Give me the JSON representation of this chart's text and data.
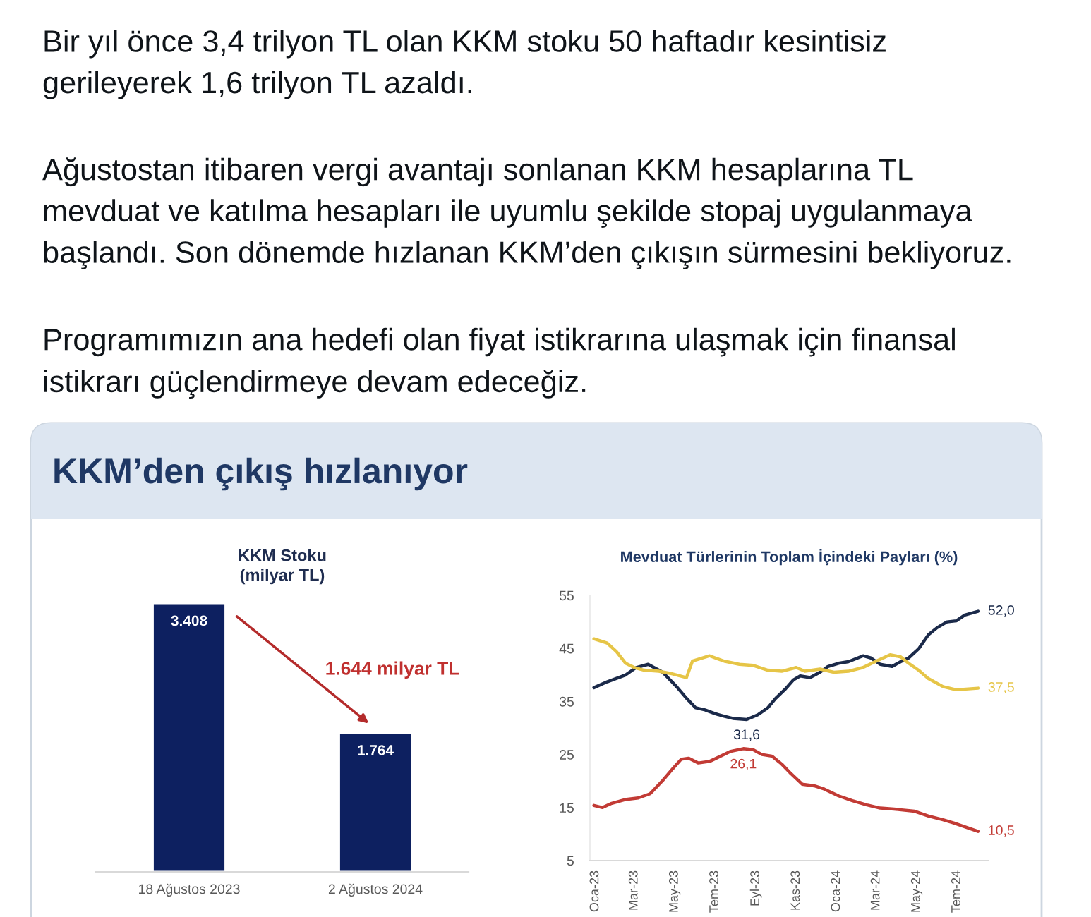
{
  "chart_data": [
    {
      "type": "other",
      "title": "KKM’den çıkış hızlanıyor",
      "annotations": [
        "Bir yıl önce 3,4 trilyon TL olan KKM stoku 50 haftadır kesintisiz\ngerileyerek 1,6 trilyon TL azaldı.",
        "Ağustostan itibaren vergi avantajı sonlanan KKM hesaplarına TL\nmevduat ve katılma hesapları ile uyumlu şekilde stopaj uygulanmaya\nbaşlandı. Son dönemde hızlanan KKM’den çıkışın sürmesini bekliyoruz.",
        "Programımızın ana hedefi olan fiyat istikrarına ulaşmak için finansal\nistikrarı güçlendirmeye devam edeceğiz."
      ]
    },
    {
      "type": "bar",
      "title": "KKM Stoku\n(milyar TL)",
      "categories": [
        "18 Ağustos 2023",
        "2 Ağustos 2024"
      ],
      "values": [
        3408,
        1764
      ],
      "value_labels": [
        "3.408",
        "1.764"
      ],
      "color": "#0d2060",
      "annotations": [
        "1.644 milyar TL"
      ]
    },
    {
      "type": "line",
      "title": "Mevduat Türlerinin Toplam İçindeki Payları (%)",
      "series": [
        {
          "color": "#1b2a4a",
          "x": [
            "2022-12-30",
            "2023-01-19",
            "2023-02-16",
            "2023-03-04",
            "2023-03-22",
            "2023-04-13",
            "2023-05-04",
            "2023-05-19",
            "2023-06-02",
            "2023-06-16",
            "2023-07-01",
            "2023-07-15",
            "2023-07-28",
            "2023-08-18",
            "2023-09-04",
            "2023-09-19",
            "2023-10-01",
            "2023-10-16",
            "2023-10-28",
            "2023-11-07",
            "2023-11-22",
            "2023-12-07",
            "2023-12-19",
            "2024-01-04",
            "2024-01-19",
            "2024-02-10",
            "2024-02-22",
            "2024-03-07",
            "2024-03-25",
            "2024-04-07",
            "2024-04-19",
            "2024-05-04",
            "2024-05-19",
            "2024-06-01",
            "2024-06-16",
            "2024-06-30",
            "2024-07-13",
            "2024-08-02"
          ],
          "values": [
            37.6,
            38.7,
            40.0,
            41.4,
            42.0,
            40.5,
            37.8,
            35.6,
            33.8,
            33.4,
            32.7,
            32.2,
            31.8,
            31.6,
            32.5,
            33.8,
            35.6,
            37.4,
            39.1,
            39.8,
            39.5,
            40.5,
            41.6,
            42.2,
            42.5,
            43.6,
            43.2,
            42.0,
            41.6,
            42.5,
            43.2,
            44.9,
            47.6,
            48.9,
            50.0,
            50.2,
            51.3,
            52.0
          ],
          "value_labels": [
            null,
            null,
            null,
            null,
            null,
            null,
            null,
            null,
            null,
            null,
            null,
            null,
            null,
            "31,6",
            null,
            null,
            null,
            null,
            null,
            null,
            null,
            null,
            null,
            null,
            null,
            null,
            null,
            null,
            null,
            null,
            null,
            null,
            null,
            null,
            null,
            null,
            null,
            "52,0"
          ]
        },
        {
          "color": "#e6c547",
          "x": [
            "2022-12-30",
            "2023-01-19",
            "2023-02-02",
            "2023-02-16",
            "2023-03-01",
            "2023-03-16",
            "2023-04-07",
            "2023-04-28",
            "2023-05-19",
            "2023-05-28",
            "2023-06-23",
            "2023-07-15",
            "2023-08-07",
            "2023-08-28",
            "2023-09-19",
            "2023-10-10",
            "2023-11-01",
            "2023-11-14",
            "2023-12-07",
            "2023-12-28",
            "2024-01-19",
            "2024-02-10",
            "2024-03-01",
            "2024-03-22",
            "2024-04-07",
            "2024-04-19",
            "2024-05-04",
            "2024-05-19",
            "2024-06-10",
            "2024-06-30",
            "2024-08-02"
          ],
          "values": [
            46.8,
            46.0,
            44.4,
            42.2,
            41.4,
            40.9,
            40.7,
            40.2,
            39.5,
            42.6,
            43.6,
            42.6,
            42.0,
            41.8,
            40.9,
            40.7,
            41.4,
            40.7,
            41.1,
            40.5,
            40.7,
            41.4,
            42.6,
            43.8,
            43.4,
            42.2,
            40.9,
            39.3,
            37.8,
            37.2,
            37.5
          ],
          "value_labels": [
            null,
            null,
            null,
            null,
            null,
            null,
            null,
            null,
            null,
            null,
            null,
            null,
            null,
            null,
            null,
            null,
            null,
            null,
            null,
            null,
            null,
            null,
            null,
            null,
            null,
            null,
            null,
            null,
            null,
            null,
            "37,5"
          ]
        },
        {
          "color": "#c23b35",
          "x": [
            "2022-12-30",
            "2023-01-12",
            "2023-01-26",
            "2023-02-15",
            "2023-03-07",
            "2023-03-25",
            "2023-04-13",
            "2023-04-28",
            "2023-05-11",
            "2023-05-22",
            "2023-06-06",
            "2023-06-23",
            "2023-07-10",
            "2023-07-25",
            "2023-08-13",
            "2023-08-28",
            "2023-09-10",
            "2023-09-25",
            "2023-10-10",
            "2023-10-24",
            "2023-11-10",
            "2023-11-28",
            "2023-12-13",
            "2024-01-04",
            "2024-01-25",
            "2024-02-16",
            "2024-03-07",
            "2024-03-28",
            "2024-04-28",
            "2024-05-19",
            "2024-06-10",
            "2024-06-26",
            "2024-08-02"
          ],
          "values": [
            15.4,
            15.0,
            15.8,
            16.5,
            16.8,
            17.6,
            20.1,
            22.3,
            24.1,
            24.3,
            23.4,
            23.7,
            24.7,
            25.6,
            26.1,
            25.9,
            25.0,
            24.7,
            23.2,
            21.4,
            19.4,
            19.1,
            18.5,
            17.2,
            16.3,
            15.5,
            14.9,
            14.7,
            14.3,
            13.4,
            12.7,
            12.1,
            10.5
          ],
          "value_labels": [
            null,
            null,
            null,
            null,
            null,
            null,
            null,
            null,
            null,
            null,
            null,
            null,
            null,
            null,
            "26,1",
            null,
            null,
            null,
            null,
            null,
            null,
            null,
            null,
            null,
            null,
            null,
            null,
            null,
            null,
            null,
            null,
            null,
            "10,5"
          ]
        }
      ],
      "xlim": [
        "2022-12-24",
        "2024-08-17"
      ],
      "xticks": [
        {
          "value": "2023-01-01",
          "label": "Oca-23"
        },
        {
          "value": "2023-03-01",
          "label": "Mar-23"
        },
        {
          "value": "2023-05-01",
          "label": "May-23"
        },
        {
          "value": "2023-07-01",
          "label": "Tem-23"
        },
        {
          "value": "2023-09-01",
          "label": "Eyl-23"
        },
        {
          "value": "2023-11-01",
          "label": "Kas-23"
        },
        {
          "value": "2024-01-01",
          "label": "Oca-24"
        },
        {
          "value": "2024-03-01",
          "label": "Mar-24"
        },
        {
          "value": "2024-05-01",
          "label": "May-24"
        },
        {
          "value": "2024-07-01",
          "label": "Tem-24"
        }
      ],
      "ylim": [
        5,
        55
      ],
      "yticks": [
        5,
        15,
        25,
        35,
        45,
        55
      ]
    }
  ]
}
